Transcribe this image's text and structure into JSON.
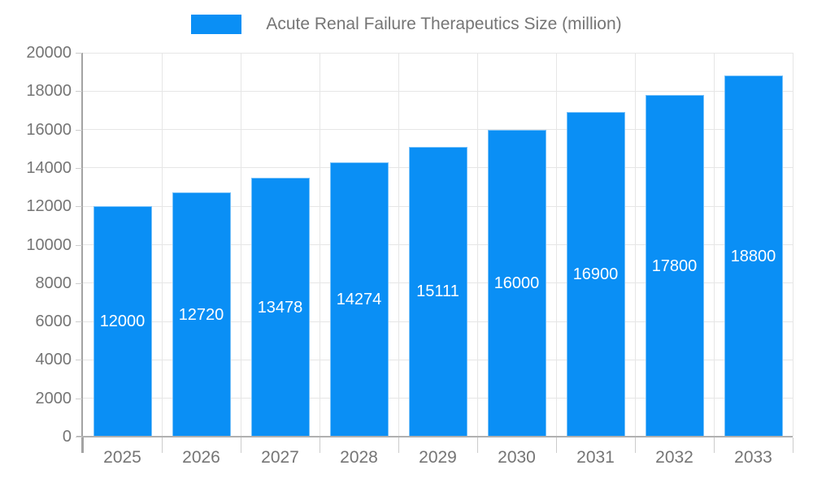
{
  "legend": {
    "label": "Acute Renal Failure Therapeutics Size (million)",
    "position": "top"
  },
  "chart_data": {
    "type": "bar",
    "title": "Acute Renal Failure Therapeutics Size (million)",
    "categories": [
      "2025",
      "2026",
      "2027",
      "2028",
      "2029",
      "2030",
      "2031",
      "2032",
      "2033"
    ],
    "values": [
      12000,
      12720,
      13478,
      14274,
      15111,
      16000,
      16900,
      17800,
      18800
    ],
    "series_name": "Acute Renal Failure Therapeutics Size (million)",
    "xlabel": "",
    "ylabel": "",
    "ylim": [
      0,
      20000
    ],
    "ytick_step": 2000,
    "yticks": [
      0,
      2000,
      4000,
      6000,
      8000,
      10000,
      12000,
      14000,
      16000,
      18000,
      20000
    ],
    "grid": true,
    "legend_position": "top",
    "value_labels_inside_bars": true
  },
  "colors": {
    "bar": "#0a8ff5",
    "bar_border": "rgba(255,255,255,0.45)",
    "grid_line": "#e6e6e6",
    "y_axis_line": "#a3a3a3",
    "x_axis_line": "#b0b0b0",
    "tick": "#cccccc",
    "axis_text": "#757575",
    "value_label_text": "#ffffff",
    "background": "#ffffff"
  }
}
